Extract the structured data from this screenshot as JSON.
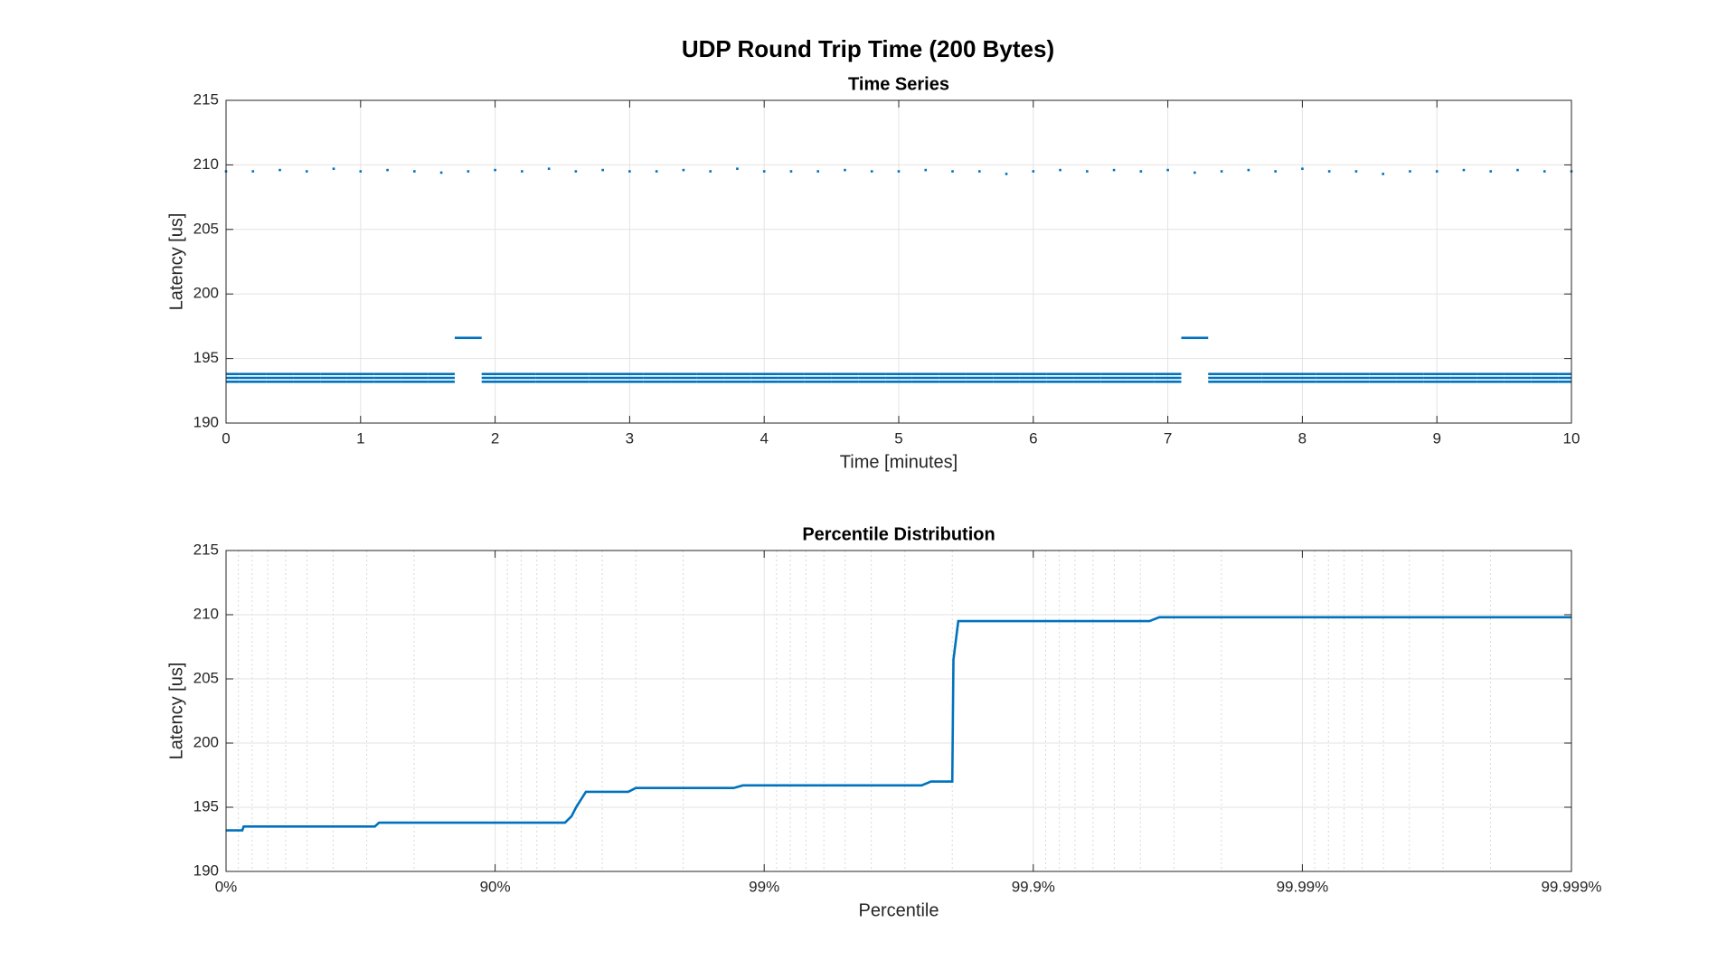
{
  "title": "UDP Round Trip Time (200 Bytes)",
  "chart_data": [
    {
      "type": "scatter",
      "title": "Time Series",
      "xlabel": "Time [minutes]",
      "ylabel": "Latency [us]",
      "xlim": [
        0,
        10
      ],
      "xticks": [
        0,
        1,
        2,
        3,
        4,
        5,
        6,
        7,
        8,
        9,
        10
      ],
      "ylim": [
        190,
        215
      ],
      "yticks": [
        190,
        195,
        200,
        205,
        210,
        215
      ],
      "grid": true,
      "x": [
        0,
        0.2,
        0.4,
        0.6,
        0.8,
        1,
        1.2,
        1.4,
        1.6,
        1.8,
        2,
        2.2,
        2.4,
        2.6,
        2.8,
        3,
        3.2,
        3.4,
        3.6,
        3.8,
        4,
        4.2,
        4.4,
        4.6,
        4.8,
        5,
        5.2,
        5.4,
        5.6,
        5.8,
        6,
        6.2,
        6.4,
        6.6,
        6.8,
        7,
        7.2,
        7.4,
        7.6,
        7.8,
        8,
        8.2,
        8.4,
        8.6,
        8.8,
        9,
        9.2,
        9.4,
        9.6,
        9.8,
        10
      ],
      "series": [
        {
          "color": "#0072bd",
          "marker": "dash",
          "values": [
            193.2,
            193.2,
            193.2,
            193.2,
            193.2,
            193.2,
            193.2,
            193.2,
            193.2,
            null,
            193.2,
            193.2,
            193.2,
            193.2,
            193.2,
            193.2,
            193.2,
            193.2,
            193.2,
            193.2,
            193.2,
            193.2,
            193.2,
            193.2,
            193.2,
            193.2,
            193.2,
            193.2,
            193.2,
            193.2,
            193.2,
            193.2,
            193.2,
            193.2,
            193.2,
            193.2,
            null,
            193.2,
            193.2,
            193.2,
            193.2,
            193.2,
            193.2,
            193.2,
            193.2,
            193.2,
            193.2,
            193.2,
            193.2,
            193.2,
            193.2
          ]
        },
        {
          "color": "#0072bd",
          "marker": "dash",
          "values": [
            193.5,
            193.5,
            193.5,
            193.5,
            193.5,
            193.5,
            193.5,
            193.5,
            193.5,
            null,
            193.5,
            193.5,
            193.5,
            193.5,
            193.5,
            193.5,
            193.5,
            193.5,
            193.5,
            193.5,
            193.5,
            193.5,
            193.5,
            193.5,
            193.5,
            193.5,
            193.5,
            193.5,
            193.5,
            193.5,
            193.5,
            193.5,
            193.5,
            193.5,
            193.5,
            193.5,
            null,
            193.5,
            193.5,
            193.5,
            193.5,
            193.5,
            193.5,
            193.5,
            193.5,
            193.5,
            193.5,
            193.5,
            193.5,
            193.5,
            193.5
          ]
        },
        {
          "color": "#0072bd",
          "marker": "dash",
          "values": [
            193.8,
            193.8,
            193.8,
            193.8,
            193.8,
            193.8,
            193.8,
            193.8,
            193.8,
            null,
            193.8,
            193.8,
            193.8,
            193.8,
            193.8,
            193.8,
            193.8,
            193.8,
            193.8,
            193.8,
            193.8,
            193.8,
            193.8,
            193.8,
            193.8,
            193.8,
            193.8,
            193.8,
            193.8,
            193.8,
            193.8,
            193.8,
            193.8,
            193.8,
            193.8,
            193.8,
            null,
            193.8,
            193.8,
            193.8,
            193.8,
            193.8,
            193.8,
            193.8,
            193.8,
            193.8,
            193.8,
            193.8,
            193.8,
            193.8,
            193.8
          ]
        },
        {
          "color": "#0072bd",
          "marker": "dash",
          "values": [
            null,
            null,
            null,
            null,
            null,
            null,
            null,
            null,
            null,
            196.6,
            null,
            null,
            null,
            null,
            null,
            null,
            null,
            null,
            null,
            null,
            null,
            null,
            null,
            null,
            null,
            null,
            null,
            null,
            null,
            null,
            null,
            null,
            null,
            null,
            null,
            null,
            196.6,
            null,
            null,
            null,
            null,
            null,
            null,
            null,
            null,
            null,
            null,
            null,
            null,
            null,
            null
          ]
        },
        {
          "color": "#0072bd",
          "marker": "dot",
          "values": [
            209.5,
            209.5,
            209.6,
            209.5,
            209.7,
            209.5,
            209.6,
            209.5,
            209.4,
            209.5,
            209.6,
            209.5,
            209.7,
            209.5,
            209.6,
            209.5,
            209.5,
            209.6,
            209.5,
            209.7,
            209.5,
            209.5,
            209.5,
            209.6,
            209.5,
            209.5,
            209.6,
            209.5,
            209.5,
            209.3,
            209.5,
            209.6,
            209.5,
            209.6,
            209.5,
            209.6,
            209.4,
            209.5,
            209.6,
            209.5,
            209.7,
            209.5,
            209.5,
            209.3,
            209.5,
            209.5,
            209.6,
            209.5,
            209.6,
            209.5,
            209.5
          ]
        }
      ]
    },
    {
      "type": "line",
      "title": "Percentile Distribution",
      "xlabel": "Percentile",
      "ylabel": "Latency [us]",
      "xscale": "log-complement",
      "minor_grid": true,
      "xlim": [
        0,
        99.999
      ],
      "xticks": [
        {
          "value": 0,
          "label": "0%"
        },
        {
          "value": 90,
          "label": "90%"
        },
        {
          "value": 99,
          "label": "99%"
        },
        {
          "value": 99.9,
          "label": "99.9%"
        },
        {
          "value": 99.99,
          "label": "99.99%"
        },
        {
          "value": 99.999,
          "label": "99.999%"
        }
      ],
      "ylim": [
        190,
        215
      ],
      "yticks": [
        190,
        195,
        200,
        205,
        210,
        215
      ],
      "grid": true,
      "x": [
        0,
        13,
        14,
        72,
        73,
        94.5,
        94.8,
        95.0,
        95.4,
        96.8,
        97,
        98.7,
        98.8,
        99.74,
        99.76,
        99.8,
        99.802,
        99.81,
        99.963,
        99.966,
        99.999
      ],
      "series": [
        {
          "color": "#0072bd",
          "values": [
            193.2,
            193.2,
            193.5,
            193.5,
            193.8,
            193.8,
            194.3,
            195.0,
            196.2,
            196.2,
            196.5,
            196.5,
            196.7,
            196.7,
            197.0,
            197.0,
            206.5,
            209.5,
            209.5,
            209.8,
            209.8
          ]
        }
      ]
    }
  ]
}
